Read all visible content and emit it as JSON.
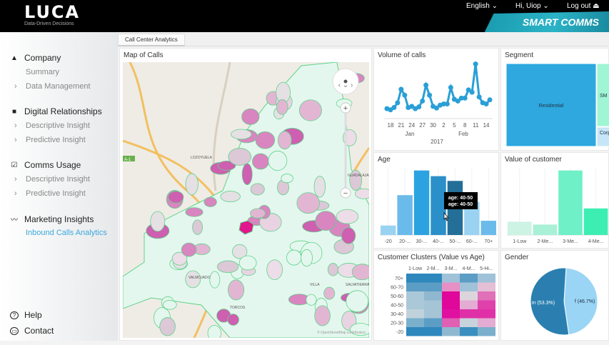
{
  "header": {
    "logo": "LUCA",
    "tagline": "Data-Driven Decisions",
    "language": "English ⌄",
    "user": "Hi, Uiop ⌄",
    "logout": "Log out ⏏",
    "brand": "SMART COMMS"
  },
  "sidebar": {
    "sections": [
      {
        "title": "Company",
        "icon": "briefcase-icon",
        "items": [
          {
            "label": "Summary",
            "chevron": false
          },
          {
            "label": "Data Management",
            "chevron": true
          }
        ]
      },
      {
        "title": "Digital Relationships",
        "icon": "chat-icon",
        "items": [
          {
            "label": "Descriptive Insight",
            "chevron": true
          },
          {
            "label": "Predictive Insight",
            "chevron": true
          }
        ]
      },
      {
        "title": "Comms Usage",
        "icon": "clipboard-check-icon",
        "items": [
          {
            "label": "Descriptive Insight",
            "chevron": true
          },
          {
            "label": "Predictive Insight",
            "chevron": true
          }
        ]
      },
      {
        "title": "Marketing Insights",
        "icon": "trend-icon",
        "items": [
          {
            "label": "Inbound Calls Analytics",
            "chevron": false,
            "active": true
          }
        ]
      }
    ],
    "help": "Help",
    "contact": "Contact"
  },
  "tabs": [
    {
      "label": "Call Center Analytics"
    }
  ],
  "map": {
    "title": "Map of Calls",
    "labels": [
      "LOZOYUELA",
      "GUADALAJA",
      "VALMOJADO",
      "TORCOS",
      "VILLA",
      "SALVATIERRA"
    ],
    "road_badge": "A-1",
    "attribution": "© OpenStreetMap contributors",
    "zoom_in": "+",
    "zoom_out": "−"
  },
  "colors": {
    "accent": "#2a9fd6",
    "active_link": "#3aa8dc",
    "pink": "#e0188c",
    "brand": "#2bb3c6"
  },
  "chart_data": [
    {
      "type": "line",
      "title": "Volume of calls",
      "x": [
        "2017-01-17",
        "2017-01-18",
        "2017-01-19",
        "2017-01-20",
        "2017-01-21",
        "2017-01-22",
        "2017-01-23",
        "2017-01-24",
        "2017-01-25",
        "2017-01-26",
        "2017-01-27",
        "2017-01-28",
        "2017-01-29",
        "2017-01-30",
        "2017-01-31",
        "2017-02-01",
        "2017-02-02",
        "2017-02-03",
        "2017-02-04",
        "2017-02-05",
        "2017-02-06",
        "2017-02-07",
        "2017-02-08",
        "2017-02-09",
        "2017-02-10",
        "2017-02-11",
        "2017-02-12",
        "2017-02-13",
        "2017-02-14",
        "2017-02-15"
      ],
      "values": [
        12,
        10,
        14,
        22,
        45,
        35,
        14,
        16,
        12,
        15,
        25,
        52,
        35,
        16,
        13,
        18,
        20,
        20,
        48,
        28,
        25,
        30,
        30,
        44,
        40,
        88,
        32,
        22,
        20,
        27
      ],
      "tick_labels": [
        "18",
        "21",
        "24",
        "27",
        "30",
        "2",
        "5",
        "8",
        "11",
        "14"
      ],
      "month_labels": [
        "Jan",
        "Feb"
      ],
      "year_label": "2017",
      "color": "#2a9fd6"
    },
    {
      "type": "treemap",
      "title": "Segment",
      "categories": [
        "Residential",
        "SME",
        "Corporation"
      ],
      "labels": [
        "Residential",
        "SM",
        "Corp ion"
      ],
      "values": [
        70,
        24,
        6
      ],
      "colors": [
        "#2ea8df",
        "#9ff5d4",
        "#c6e6f7"
      ]
    },
    {
      "type": "bar",
      "title": "Age",
      "categories": [
        "-20",
        "20-...",
        "30-...",
        "40-...",
        "50-...",
        "60-...",
        "70+"
      ],
      "values": [
        10,
        42,
        68,
        62,
        57,
        35,
        15
      ],
      "colors": [
        "#9ad2f2",
        "#6bbbea",
        "#2ba3e0",
        "#2b8fca",
        "#236f98",
        "#9ad2f2",
        "#6bbbea"
      ],
      "tooltip": [
        "age: 40-50",
        "age: 40-50"
      ]
    },
    {
      "type": "bar",
      "title": "Value of customer",
      "categories": [
        "1-Low",
        "2-Me...",
        "3-Me...",
        "4-Me...",
        "5-Hi..."
      ],
      "values": [
        14,
        11,
        68,
        28,
        55
      ],
      "colors": [
        "#cdf3e4",
        "#a8f0d6",
        "#6ff0c6",
        "#3deeb2",
        "#14f0a0"
      ]
    },
    {
      "type": "heatmap",
      "title": "Customer Clusters (Value vs Age)",
      "x": [
        "1-Low",
        "2-M...",
        "3-M...",
        "4-M...",
        "5-Hi..."
      ],
      "y": [
        "70+",
        "60-70",
        "50-60",
        "40-50",
        "30-40",
        "20-30",
        "-20"
      ],
      "colors": [
        [
          "#2e87bd",
          "#2e87bd",
          "#9fc2d8",
          "#5b9dc4",
          "#9fc2d8"
        ],
        [
          "#5b9dc4",
          "#5b9dc4",
          "#e690c6",
          "#9fc2d8",
          "#e4bfd6"
        ],
        [
          "#aac8d8",
          "#8fb8d0",
          "#e0089a",
          "#dcd6dc",
          "#e070b8"
        ],
        [
          "#aac8d8",
          "#a5c4d6",
          "#e0089a",
          "#e4acd2",
          "#e040ac"
        ],
        [
          "#c0d2dc",
          "#a5c4d6",
          "#e010a0",
          "#e030a8",
          "#e030a8"
        ],
        [
          "#7ab0cc",
          "#5b9dc4",
          "#e060b4",
          "#c8d4dc",
          "#e4acd2"
        ],
        [
          "#2e87bd",
          "#2e87bd",
          "#8fb8d0",
          "#3b8fc0",
          "#7ab0cc"
        ]
      ]
    },
    {
      "type": "pie",
      "title": "Gender",
      "categories": [
        "m",
        "f"
      ],
      "values": [
        53.3,
        46.7
      ],
      "labels": [
        "m (53.3%)",
        "f (46.7%)"
      ],
      "colors": [
        "#2a7fb0",
        "#9ad5f5"
      ]
    }
  ]
}
